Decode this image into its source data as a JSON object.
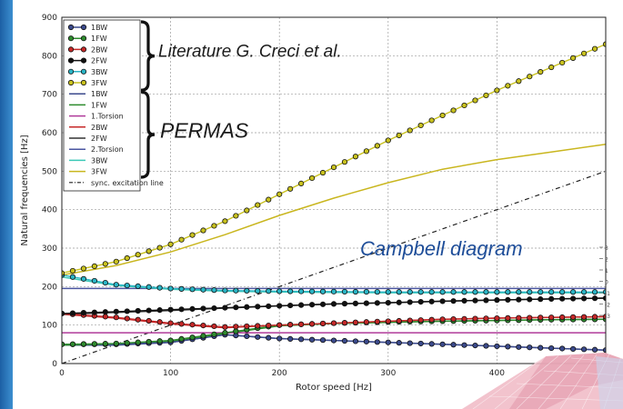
{
  "chart_data": {
    "type": "line",
    "xlabel": "Rotor speed [Hz]",
    "ylabel": "Natural frequencies [Hz]",
    "xlim": [
      0,
      500
    ],
    "ylim": [
      0,
      900
    ],
    "xticks": [
      0,
      100,
      200,
      300,
      400
    ],
    "yticks": [
      0,
      100,
      200,
      300,
      400,
      500,
      600,
      700,
      800,
      900
    ],
    "grid": true,
    "legend_placement": "top-left",
    "legend": [
      "1BW",
      "1FW",
      "2BW",
      "2FW",
      "3BW",
      "3FW",
      "1BW",
      "1FW",
      "1.Torsion",
      "2BW",
      "2FW",
      "2.Torsion",
      "3BW",
      "3FW",
      "sync. excitation line"
    ],
    "annotations": {
      "literature": "Literature G. Creci et al.",
      "permas": "PERMAS",
      "campbell": "Campbell diagram"
    },
    "inset_ticks": [
      "3",
      "2",
      "1",
      "0",
      "-1",
      "-2",
      "-3"
    ],
    "literature_series": [
      {
        "name": "1BW",
        "color": "#3b4a8c",
        "x": [
          0,
          50,
          100,
          150,
          200,
          250,
          300,
          350,
          400,
          450,
          500
        ],
        "y": [
          50,
          50,
          55,
          75,
          65,
          60,
          55,
          50,
          45,
          40,
          35
        ]
      },
      {
        "name": "1FW",
        "color": "#2e8b2e",
        "x": [
          0,
          50,
          100,
          150,
          200,
          250,
          300,
          350,
          400,
          450,
          500
        ],
        "y": [
          50,
          52,
          60,
          80,
          100,
          105,
          108,
          110,
          112,
          114,
          115
        ]
      },
      {
        "name": "2BW",
        "color": "#c62828",
        "x": [
          0,
          50,
          100,
          150,
          200,
          250,
          300,
          350,
          400,
          450,
          500
        ],
        "y": [
          130,
          120,
          105,
          95,
          100,
          105,
          110,
          115,
          118,
          120,
          122
        ]
      },
      {
        "name": "2FW",
        "color": "#111111",
        "x": [
          0,
          50,
          100,
          150,
          200,
          250,
          300,
          350,
          400,
          450,
          500
        ],
        "y": [
          130,
          135,
          140,
          145,
          150,
          155,
          158,
          162,
          165,
          168,
          170
        ]
      },
      {
        "name": "3BW",
        "color": "#2bb5c6",
        "x": [
          0,
          50,
          100,
          150,
          200,
          250,
          300,
          350,
          400,
          450,
          500
        ],
        "y": [
          230,
          205,
          195,
          190,
          188,
          187,
          186,
          186,
          186,
          186,
          186
        ]
      },
      {
        "name": "3FW",
        "color": "#c9c21e",
        "x": [
          0,
          50,
          100,
          150,
          200,
          250,
          300,
          350,
          400,
          450,
          500
        ],
        "y": [
          235,
          265,
          310,
          370,
          440,
          510,
          580,
          645,
          710,
          770,
          830
        ]
      }
    ],
    "permas_series": [
      {
        "name": "1BW",
        "color": "#3b4a8c",
        "x": [
          0,
          50,
          100,
          150,
          200,
          250,
          300,
          350,
          400,
          450,
          500
        ],
        "y": [
          48,
          48,
          55,
          75,
          65,
          60,
          55,
          50,
          45,
          40,
          35
        ]
      },
      {
        "name": "1FW",
        "color": "#2e8b2e",
        "x": [
          0,
          50,
          100,
          150,
          200,
          250,
          300,
          350,
          400,
          450,
          500
        ],
        "y": [
          48,
          50,
          58,
          78,
          98,
          104,
          107,
          110,
          112,
          114,
          115
        ]
      },
      {
        "name": "1.Torsion",
        "color": "#b03a9a",
        "x": [
          0,
          500
        ],
        "y": [
          80,
          80
        ]
      },
      {
        "name": "2BW",
        "color": "#c62828",
        "x": [
          0,
          50,
          100,
          150,
          200,
          250,
          300,
          350,
          400,
          450,
          500
        ],
        "y": [
          128,
          118,
          103,
          93,
          100,
          105,
          110,
          115,
          118,
          120,
          122
        ]
      },
      {
        "name": "2FW",
        "color": "#333333",
        "x": [
          0,
          50,
          100,
          150,
          200,
          250,
          300,
          350,
          400,
          450,
          500
        ],
        "y": [
          128,
          133,
          138,
          144,
          150,
          155,
          158,
          162,
          165,
          168,
          170
        ]
      },
      {
        "name": "2.Torsion",
        "color": "#4a55a0",
        "x": [
          0,
          500
        ],
        "y": [
          195,
          195
        ]
      },
      {
        "name": "3BW",
        "color": "#3cc9b7",
        "x": [
          0,
          50,
          100,
          150,
          200,
          250,
          300,
          350,
          400,
          450,
          500
        ],
        "y": [
          225,
          203,
          193,
          188,
          186,
          185,
          184,
          184,
          184,
          184,
          184
        ]
      },
      {
        "name": "3FW",
        "color": "#c9b61e",
        "x": [
          0,
          50,
          100,
          150,
          200,
          250,
          300,
          350,
          400,
          450,
          500
        ],
        "y": [
          230,
          255,
          290,
          335,
          385,
          430,
          470,
          505,
          530,
          550,
          570
        ]
      }
    ],
    "sync_line": {
      "name": "sync. excitation line",
      "color": "#222222",
      "x": [
        0,
        500
      ],
      "y": [
        0,
        500
      ]
    }
  }
}
